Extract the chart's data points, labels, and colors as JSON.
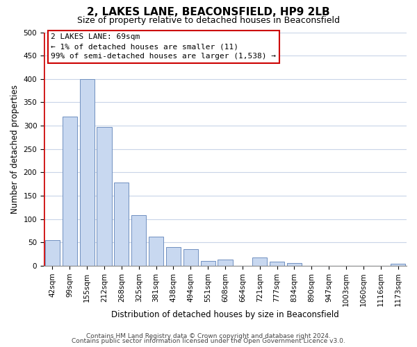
{
  "title": "2, LAKES LANE, BEACONSFIELD, HP9 2LB",
  "subtitle": "Size of property relative to detached houses in Beaconsfield",
  "xlabel": "Distribution of detached houses by size in Beaconsfield",
  "ylabel": "Number of detached properties",
  "bar_labels": [
    "42sqm",
    "99sqm",
    "155sqm",
    "212sqm",
    "268sqm",
    "325sqm",
    "381sqm",
    "438sqm",
    "494sqm",
    "551sqm",
    "608sqm",
    "664sqm",
    "721sqm",
    "777sqm",
    "834sqm",
    "890sqm",
    "947sqm",
    "1003sqm",
    "1060sqm",
    "1116sqm",
    "1173sqm"
  ],
  "bar_values": [
    55,
    320,
    400,
    297,
    178,
    108,
    63,
    40,
    36,
    10,
    14,
    0,
    18,
    9,
    6,
    0,
    0,
    0,
    0,
    0,
    5
  ],
  "bar_color": "#c8d8f0",
  "bar_edge_color": "#7090c0",
  "highlight_outline_color": "#cc0000",
  "ylim": [
    0,
    500
  ],
  "yticks": [
    0,
    50,
    100,
    150,
    200,
    250,
    300,
    350,
    400,
    450,
    500
  ],
  "annotation_title": "2 LAKES LANE: 69sqm",
  "annotation_line1": "← 1% of detached houses are smaller (11)",
  "annotation_line2": "99% of semi-detached houses are larger (1,538) →",
  "footer1": "Contains HM Land Registry data © Crown copyright and database right 2024.",
  "footer2": "Contains public sector information licensed under the Open Government Licence v3.0.",
  "bg_color": "#ffffff",
  "grid_color": "#c8d4e8",
  "title_fontsize": 11,
  "subtitle_fontsize": 9,
  "axis_label_fontsize": 8.5,
  "tick_fontsize": 7.5,
  "annotation_fontsize": 8,
  "footer_fontsize": 6.5
}
